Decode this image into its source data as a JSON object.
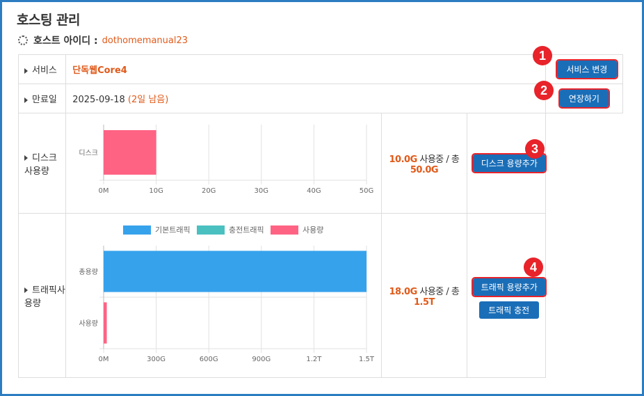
{
  "page": {
    "title": "호스팅 관리",
    "host_label": "호스트 아이디 :",
    "host_id": "dothomemanual23"
  },
  "rows": {
    "service": {
      "label": "서비스",
      "value": "단독웹Core4",
      "button": "서비스 변경",
      "badge": "1"
    },
    "expiry": {
      "label": "만료일",
      "date": "2025-09-18",
      "remaining": "(2일 남음)",
      "button": "연장하기",
      "badge": "2"
    },
    "disk": {
      "label": "디스크 사용량",
      "used": "10.0G",
      "used_text": "사용중 / 총",
      "total": "50.0G",
      "button": "디스크 용량추가",
      "badge": "3"
    },
    "traffic": {
      "label": "트래픽사용량",
      "used": "18.0G",
      "used_text": "사용중 / 총",
      "total": "1.5T",
      "button": "트래픽 용량추가",
      "button2": "트래픽 충전",
      "badge": "4"
    }
  },
  "chart_data": [
    {
      "type": "bar",
      "orientation": "horizontal",
      "categories": [
        "디스크"
      ],
      "series": [
        {
          "values": [
            10
          ]
        }
      ],
      "xlim": [
        0,
        50
      ],
      "x_ticks": [
        "0M",
        "10G",
        "20G",
        "30G",
        "40G",
        "50G"
      ],
      "grid": true,
      "colors": [
        "#ff6384"
      ]
    },
    {
      "type": "bar",
      "orientation": "horizontal",
      "categories": [
        "총용량",
        "사용량"
      ],
      "series": [
        {
          "name": "기본트래픽",
          "values": [
            1.5,
            0
          ],
          "color": "#36a2eb"
        },
        {
          "name": "충전트래픽",
          "values": [
            0,
            0
          ],
          "color": "#4bc0c0"
        },
        {
          "name": "사용량",
          "values": [
            0,
            0.018
          ],
          "color": "#ff6384"
        }
      ],
      "xlim": [
        0,
        1.5
      ],
      "x_ticks": [
        "0M",
        "300G",
        "600G",
        "900G",
        "1.2T",
        "1.5T"
      ],
      "legend": "top",
      "grid": true
    }
  ]
}
